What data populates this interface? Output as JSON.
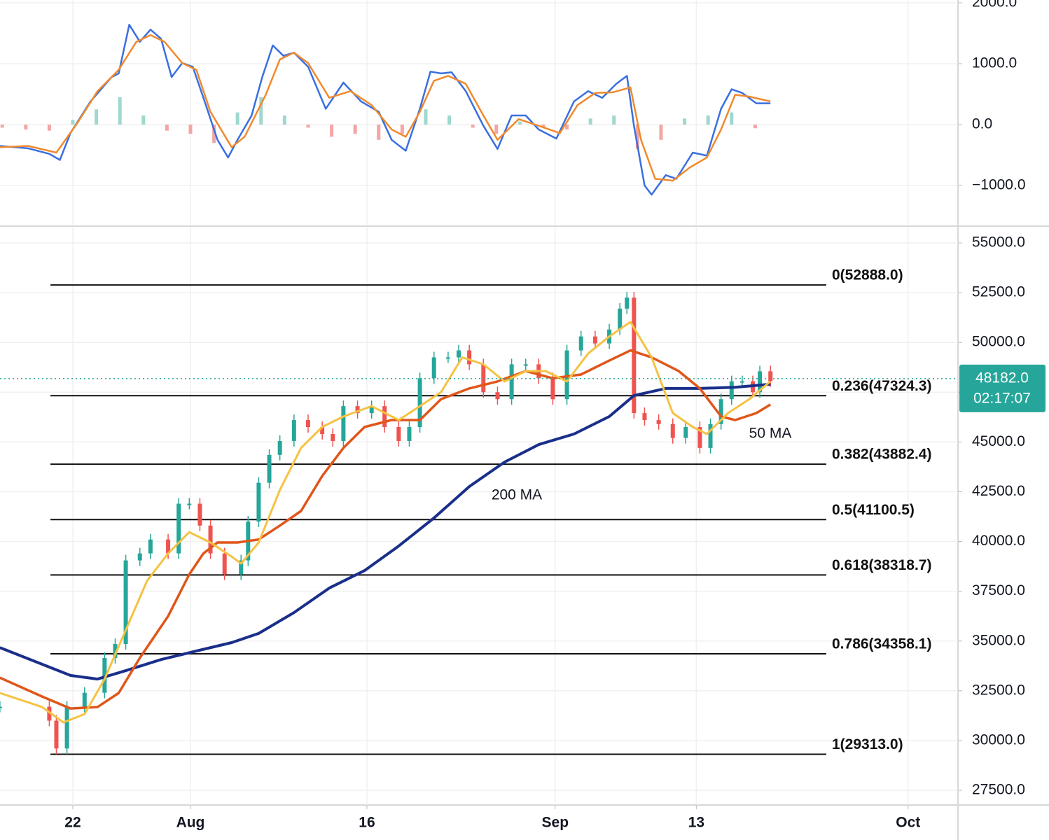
{
  "chart_data": [
    {
      "type": "line",
      "xlim": [
        -6.19,
        75.24
      ],
      "ylim": [
        -1655,
        2046
      ],
      "yticks": [
        {
          "value": 2000,
          "label": "2000.0"
        },
        {
          "value": 1000,
          "label": "1000.0"
        },
        {
          "value": 0,
          "label": "0.0"
        },
        {
          "value": -1000,
          "label": "−1000.0"
        }
      ],
      "grid": true,
      "series": [
        {
          "color": "#3a6fe0",
          "x": [
            -6.2,
            -3.8,
            -2.0,
            -1.1,
            -0.2,
            1.5,
            3.3,
            3.9,
            4.8,
            5.7,
            6.6,
            7.5,
            8.4,
            9.3,
            10.2,
            11.1,
            12.3,
            13.2,
            14.0,
            15.2,
            16.1,
            17.0,
            17.9,
            18.8,
            20.0,
            21.5,
            23.0,
            24.5,
            26.0,
            27.1,
            28.3,
            29.5,
            30.4,
            31.3,
            32.2,
            33.4,
            34.9,
            36.1,
            37.3,
            38.5,
            39.6,
            41.1,
            42.6,
            43.8,
            45.0,
            46.2,
            47.1,
            47.7,
            48.6,
            49.2,
            50.4,
            51.3,
            52.7,
            53.9,
            55.1,
            56.0,
            56.9,
            58.1,
            59.3
          ],
          "values": [
            -350,
            -390,
            -480,
            -580,
            -140,
            380,
            780,
            840,
            1640,
            1360,
            1560,
            1410,
            780,
            1010,
            950,
            440,
            -250,
            -540,
            -250,
            150,
            780,
            1300,
            1130,
            1180,
            950,
            260,
            690,
            380,
            210,
            -250,
            -430,
            260,
            870,
            840,
            860,
            550,
            -20,
            -400,
            150,
            150,
            -80,
            -230,
            380,
            550,
            440,
            670,
            800,
            -20,
            -1000,
            -1150,
            -830,
            -890,
            -460,
            -510,
            260,
            580,
            520,
            350,
            350
          ]
        },
        {
          "color": "#f08a2e",
          "x": [
            -6.2,
            -3.8,
            -1.4,
            0.4,
            2.1,
            3.9,
            5.4,
            6.6,
            7.8,
            9.3,
            10.5,
            11.7,
            13.5,
            14.6,
            16.4,
            17.6,
            18.8,
            20.0,
            21.8,
            23.6,
            25.4,
            27.1,
            28.3,
            29.5,
            30.7,
            31.9,
            33.4,
            34.9,
            36.1,
            37.9,
            39.6,
            41.4,
            42.9,
            44.4,
            45.9,
            47.4,
            48.3,
            49.5,
            51.0,
            52.4,
            53.9,
            55.1,
            56.3,
            57.5,
            59.3
          ],
          "values": [
            -370,
            -350,
            -460,
            30,
            550,
            900,
            1360,
            1470,
            1360,
            1010,
            900,
            210,
            -370,
            -200,
            490,
            1070,
            1180,
            1010,
            440,
            550,
            320,
            -80,
            -200,
            210,
            720,
            800,
            670,
            150,
            -250,
            90,
            -20,
            -140,
            320,
            520,
            530,
            610,
            -250,
            -890,
            -920,
            -710,
            -540,
            -80,
            490,
            460,
            380
          ]
        }
      ],
      "histogram": {
        "up_color": "#9fd8cf",
        "down_color": "#f3a6a4",
        "x": [
          -6,
          -4,
          -2,
          0,
          2,
          4,
          6,
          8,
          10,
          12,
          14,
          16,
          18,
          20,
          22,
          24,
          26,
          28,
          30,
          32,
          34,
          36,
          38,
          40,
          42,
          44,
          46,
          48,
          50,
          52,
          54,
          56,
          58
        ],
        "values": [
          -50,
          -80,
          -100,
          80,
          250,
          450,
          150,
          -100,
          -150,
          -300,
          200,
          450,
          150,
          -50,
          -200,
          -150,
          -250,
          -150,
          250,
          150,
          -50,
          -150,
          50,
          -50,
          -80,
          100,
          150,
          -400,
          -250,
          100,
          150,
          200,
          -60
        ]
      }
    },
    {
      "type": "line",
      "xlim": [
        -6.19,
        75.24
      ],
      "ylim": [
        26762,
        55774
      ],
      "yticks": [
        {
          "value": 55000,
          "label": "55000.0"
        },
        {
          "value": 52500,
          "label": "52500.0"
        },
        {
          "value": 50000,
          "label": "50000.0"
        },
        {
          "value": 47500,
          "label": "47500.0"
        },
        {
          "value": 45000,
          "label": "45000.0"
        },
        {
          "value": 42500,
          "label": "42500.0"
        },
        {
          "value": 40000,
          "label": "40000.0"
        },
        {
          "value": 37500,
          "label": "37500.0"
        },
        {
          "value": 35000,
          "label": "35000.0"
        },
        {
          "value": 32500,
          "label": "32500.0"
        },
        {
          "value": 30000,
          "label": "30000.0"
        },
        {
          "value": 27500,
          "label": "27500.0"
        }
      ],
      "xticks": [
        {
          "value": 0,
          "label": "22"
        },
        {
          "value": 10,
          "label": "Aug"
        },
        {
          "value": 25,
          "label": "16"
        },
        {
          "value": 41,
          "label": "Sep"
        },
        {
          "value": 53,
          "label": "13"
        },
        {
          "value": 71,
          "label": "Oct"
        }
      ],
      "grid": true,
      "price": {
        "up_color": "#26a69a",
        "down_color": "#ef5350",
        "x": [
          -6.2,
          -2.0,
          -1.4,
          -0.5,
          1.0,
          2.7,
          3.6,
          4.5,
          5.7,
          6.6,
          8.1,
          9.0,
          9.9,
          10.8,
          11.7,
          12.9,
          14.3,
          14.9,
          15.8,
          16.7,
          17.6,
          18.8,
          20.0,
          21.2,
          22.1,
          23.0,
          24.2,
          25.4,
          26.5,
          27.7,
          28.6,
          29.5,
          30.7,
          31.9,
          32.8,
          33.7,
          34.9,
          36.1,
          37.3,
          38.5,
          39.6,
          40.8,
          42.0,
          43.2,
          44.4,
          45.6,
          46.5,
          47.1,
          47.7,
          48.6,
          49.8,
          51.0,
          52.1,
          53.3,
          54.2,
          55.1,
          56.0,
          56.9,
          57.8,
          58.4,
          59.3
        ],
        "values": [
          31700,
          31000,
          29600,
          31700,
          32400,
          34150,
          34850,
          39050,
          39400,
          40100,
          39400,
          41900,
          41900,
          40800,
          39400,
          38350,
          39050,
          41000,
          42950,
          44350,
          45050,
          46100,
          45750,
          45400,
          45050,
          46800,
          46450,
          46800,
          45750,
          45050,
          45750,
          48200,
          49250,
          49250,
          49600,
          48900,
          47500,
          47150,
          48900,
          48900,
          48200,
          47150,
          49600,
          50300,
          49950,
          50650,
          51700,
          52250,
          46450,
          46100,
          45900,
          45200,
          45750,
          44700,
          45900,
          47150,
          48050,
          48050,
          47500,
          48550,
          48050
        ]
      },
      "series": [
        {
          "name": "200 MA",
          "color": "#1a2f8a",
          "width": 4,
          "x": [
            -6.2,
            -3.2,
            -0.2,
            2.1,
            4.5,
            7.5,
            10.5,
            13.5,
            15.8,
            18.8,
            21.8,
            24.8,
            27.7,
            30.7,
            33.7,
            36.7,
            39.6,
            42.6,
            45.6,
            47.7,
            50.4,
            53.3,
            56.3,
            59.3
          ],
          "values": [
            34670,
            33970,
            33270,
            33090,
            33510,
            34070,
            34500,
            34920,
            35380,
            36430,
            37660,
            38540,
            39770,
            41180,
            42760,
            43990,
            44870,
            45400,
            46280,
            47330,
            47690,
            47690,
            47750,
            47900
          ]
        },
        {
          "name": "50 MA",
          "color": "#e0561a",
          "width": 3.5,
          "x": [
            -6.2,
            -2.6,
            -0.2,
            2.1,
            3.9,
            5.7,
            8.1,
            9.9,
            11.1,
            12.3,
            14.0,
            15.8,
            17.6,
            19.4,
            21.2,
            23.0,
            24.8,
            27.1,
            29.5,
            31.3,
            33.7,
            36.1,
            38.5,
            40.8,
            43.2,
            45.6,
            47.4,
            49.2,
            51.5,
            53.3,
            55.1,
            56.3,
            58.1,
            59.3
          ],
          "values": [
            33160,
            32210,
            31610,
            31680,
            32390,
            34150,
            36250,
            38350,
            39400,
            39950,
            39950,
            40100,
            40800,
            41530,
            43290,
            44700,
            45750,
            46100,
            46100,
            47150,
            47690,
            48040,
            48560,
            48200,
            48390,
            49090,
            49600,
            49250,
            48560,
            47690,
            46280,
            46100,
            46450,
            46880
          ]
        },
        {
          "color": "#f5c242",
          "width": 3,
          "x": [
            -6.2,
            -2.6,
            -0.8,
            1.0,
            2.7,
            4.5,
            6.3,
            8.1,
            9.9,
            11.7,
            13.5,
            14.3,
            15.8,
            17.6,
            19.4,
            21.2,
            23.0,
            25.4,
            27.7,
            29.5,
            31.3,
            33.1,
            34.9,
            36.7,
            38.5,
            40.2,
            42.0,
            43.8,
            45.6,
            47.4,
            49.2,
            51.0,
            52.7,
            53.9,
            55.7,
            57.5,
            59.3
          ],
          "values": [
            32390,
            31680,
            30910,
            31330,
            33090,
            35550,
            38010,
            39400,
            40470,
            39950,
            39240,
            38890,
            39950,
            42590,
            44700,
            45750,
            46280,
            46800,
            46100,
            46800,
            47500,
            49250,
            48900,
            48040,
            48560,
            48560,
            48040,
            49440,
            50300,
            51030,
            49250,
            46450,
            45750,
            45400,
            46450,
            47150,
            48040
          ]
        }
      ],
      "levels": [
        {
          "value": 52888,
          "label": "0(52888.0)"
        },
        {
          "value": 47324.3,
          "label": "0.236(47324.3)"
        },
        {
          "value": 43882.4,
          "label": "0.382(43882.4)"
        },
        {
          "value": 41100.5,
          "label": "0.5(41100.5)"
        },
        {
          "value": 38318.7,
          "label": "0.618(38318.7)"
        },
        {
          "value": 34358.1,
          "label": "0.786(34358.1)"
        },
        {
          "value": 29313,
          "label": "1(29313.0)"
        }
      ],
      "last_price": 48182,
      "last_price_label": "48182.0",
      "countdown": "02:17:07",
      "tag_color": "#26a69a"
    }
  ]
}
